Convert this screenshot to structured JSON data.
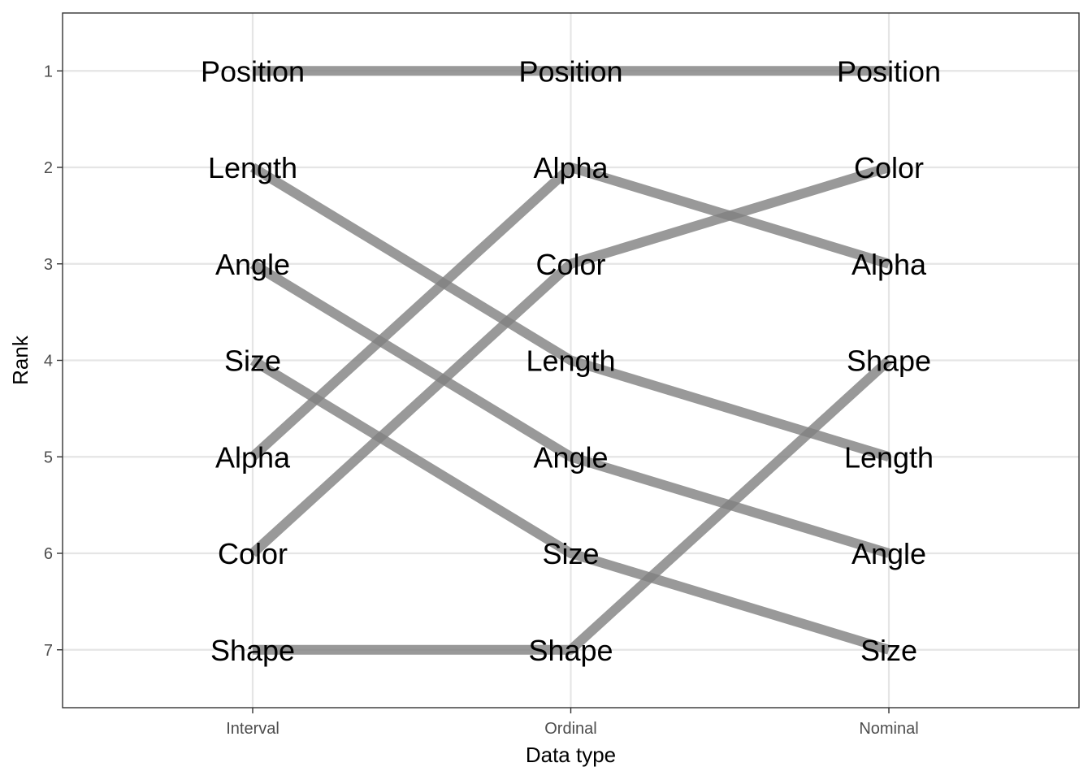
{
  "chart_data": {
    "type": "line",
    "title": "",
    "xlabel": "Data type",
    "ylabel": "Rank",
    "categories": [
      "Interval",
      "Ordinal",
      "Nominal"
    ],
    "y_ticks": [
      "1",
      "2",
      "3",
      "4",
      "5",
      "6",
      "7"
    ],
    "ylim": [
      7.6,
      0.4
    ],
    "y_reversed": true,
    "grid": true,
    "legend": "none",
    "line_color": "#7f7f7f",
    "series": [
      {
        "label": "Position",
        "values": [
          1,
          1,
          1
        ]
      },
      {
        "label": "Length",
        "values": [
          2,
          4,
          5
        ]
      },
      {
        "label": "Angle",
        "values": [
          3,
          5,
          6
        ]
      },
      {
        "label": "Size",
        "values": [
          4,
          6,
          7
        ]
      },
      {
        "label": "Alpha",
        "values": [
          5,
          2,
          3
        ]
      },
      {
        "label": "Color",
        "values": [
          6,
          3,
          2
        ]
      },
      {
        "label": "Shape",
        "values": [
          7,
          7,
          4
        ]
      }
    ]
  }
}
